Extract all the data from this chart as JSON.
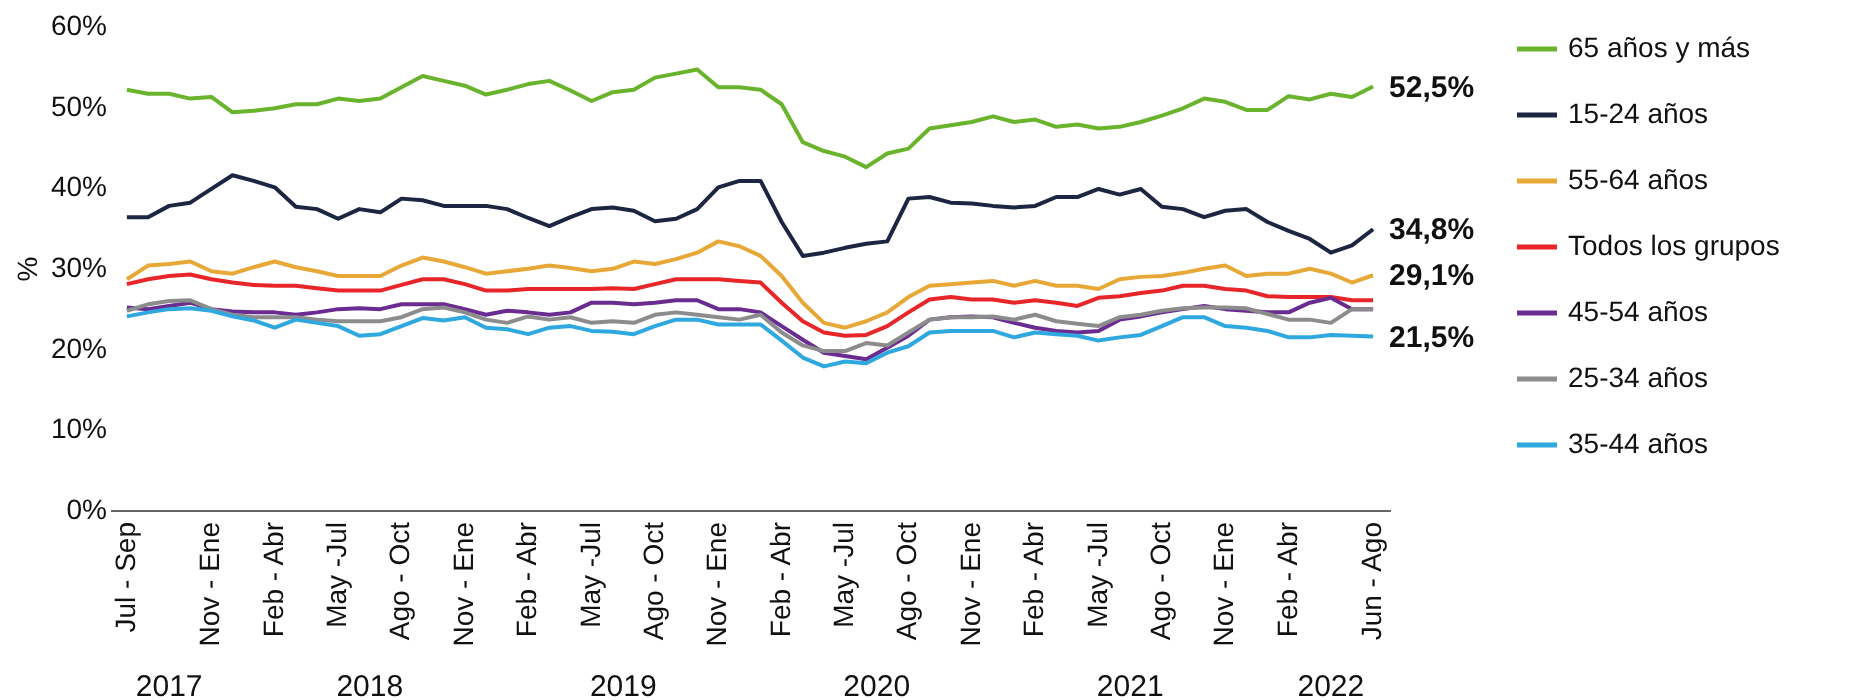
{
  "chart_data": {
    "type": "line",
    "ylabel": "%",
    "legend": "right",
    "categories": [
      "Jul - Sep",
      null,
      null,
      null,
      "Nov - Ene",
      null,
      null,
      "Feb - Abr",
      null,
      null,
      "May -Jul",
      null,
      null,
      "Ago - Oct",
      null,
      null,
      "Nov - Ene",
      null,
      null,
      "Feb - Abr",
      null,
      null,
      "May -Jul",
      null,
      null,
      "Ago - Oct",
      null,
      null,
      "Nov - Ene",
      null,
      null,
      "Feb - Abr",
      null,
      null,
      "May -Jul",
      null,
      null,
      "Ago - Oct",
      null,
      null,
      "Nov - Ene",
      null,
      null,
      "Feb - Abr",
      null,
      null,
      "May -Jul",
      null,
      null,
      "Ago - Oct",
      null,
      null,
      "Nov - Ene",
      null,
      null,
      "Feb - Abr",
      null,
      null,
      null,
      "Jun - Ago"
    ],
    "annotations": [
      "2017",
      "2018",
      "2019",
      "2020",
      "2021",
      "2022"
    ],
    "ylim": [
      0,
      60
    ],
    "yticks": [
      {
        "value": 0,
        "label": "0%"
      },
      {
        "value": 10,
        "label": "10%"
      },
      {
        "value": 20,
        "label": "20%"
      },
      {
        "value": 30,
        "label": "30%"
      },
      {
        "value": 40,
        "label": "40%"
      },
      {
        "value": 50,
        "label": "50%"
      },
      {
        "value": 60,
        "label": "60%"
      }
    ],
    "series": [
      {
        "name": "65 años y más",
        "color": "#6ab42d",
        "values": [
          52.1,
          51.6,
          51.6,
          51.0,
          51.2,
          49.3,
          49.5,
          49.8,
          50.3,
          50.3,
          51.0,
          50.7,
          51.0,
          52.4,
          53.8,
          53.2,
          52.6,
          51.5,
          52.1,
          52.8,
          53.2,
          52.0,
          50.7,
          51.8,
          52.1,
          53.6,
          54.1,
          54.6,
          52.4,
          52.4,
          52.1,
          50.3,
          45.6,
          44.5,
          43.8,
          42.5,
          44.2,
          44.8,
          47.3,
          47.7,
          48.1,
          48.8,
          48.1,
          48.4,
          47.5,
          47.8,
          47.3,
          47.5,
          48.1,
          48.9,
          49.8,
          51.0,
          50.6,
          49.6,
          49.6,
          51.3,
          50.9,
          51.6,
          51.2,
          52.5
        ],
        "value_labels": [
          null,
          null,
          null,
          null,
          null,
          null,
          null,
          null,
          null,
          null,
          null,
          null,
          null,
          null,
          null,
          null,
          null,
          null,
          null,
          null,
          null,
          null,
          null,
          null,
          null,
          null,
          null,
          null,
          null,
          null,
          null,
          null,
          null,
          null,
          null,
          null,
          null,
          null,
          null,
          null,
          null,
          null,
          null,
          null,
          null,
          null,
          null,
          null,
          null,
          null,
          null,
          null,
          null,
          null,
          null,
          null,
          null,
          null,
          null,
          "52,5%"
        ]
      },
      {
        "name": "15-24 años",
        "color": "#1c2541",
        "values": [
          36.3,
          36.3,
          37.7,
          38.1,
          39.8,
          41.5,
          40.8,
          40.0,
          37.6,
          37.3,
          36.1,
          37.3,
          36.9,
          38.6,
          38.4,
          37.7,
          37.7,
          37.7,
          37.3,
          36.2,
          35.2,
          36.3,
          37.3,
          37.5,
          37.1,
          35.8,
          36.1,
          37.3,
          40.0,
          40.8,
          40.8,
          35.7,
          31.5,
          31.9,
          32.5,
          33.0,
          33.3,
          38.6,
          38.8,
          38.1,
          38.0,
          37.7,
          37.5,
          37.7,
          38.8,
          38.8,
          39.8,
          39.1,
          39.8,
          37.6,
          37.3,
          36.3,
          37.1,
          37.3,
          35.7,
          34.6,
          33.6,
          31.9,
          32.8,
          34.8
        ],
        "value_labels": [
          null,
          null,
          null,
          null,
          null,
          null,
          null,
          null,
          null,
          null,
          null,
          null,
          null,
          null,
          null,
          null,
          null,
          null,
          null,
          null,
          null,
          null,
          null,
          null,
          null,
          null,
          null,
          null,
          null,
          null,
          null,
          null,
          null,
          null,
          null,
          null,
          null,
          null,
          null,
          null,
          null,
          null,
          null,
          null,
          null,
          null,
          null,
          null,
          null,
          null,
          null,
          null,
          null,
          null,
          null,
          null,
          null,
          null,
          null,
          "34,8%"
        ]
      },
      {
        "name": "55-64 años",
        "color": "#e8a838",
        "values": [
          28.6,
          30.3,
          30.5,
          30.8,
          29.6,
          29.3,
          30.1,
          30.8,
          30.1,
          29.6,
          29.0,
          29.0,
          29.0,
          30.3,
          31.3,
          30.8,
          30.1,
          29.3,
          29.6,
          29.9,
          30.3,
          30.0,
          29.6,
          29.9,
          30.8,
          30.5,
          31.1,
          31.9,
          33.3,
          32.7,
          31.5,
          29.0,
          25.7,
          23.2,
          22.6,
          23.4,
          24.5,
          26.4,
          27.8,
          28.0,
          28.2,
          28.4,
          27.8,
          28.4,
          27.8,
          27.8,
          27.4,
          28.6,
          28.9,
          29.0,
          29.4,
          29.9,
          30.3,
          29.0,
          29.3,
          29.3,
          29.9,
          29.3,
          28.2,
          29.1
        ],
        "value_labels": [
          null,
          null,
          null,
          null,
          null,
          null,
          null,
          null,
          null,
          null,
          null,
          null,
          null,
          null,
          null,
          null,
          null,
          null,
          null,
          null,
          null,
          null,
          null,
          null,
          null,
          null,
          null,
          null,
          null,
          null,
          null,
          null,
          null,
          null,
          null,
          null,
          null,
          null,
          null,
          null,
          null,
          null,
          null,
          null,
          null,
          null,
          null,
          null,
          null,
          null,
          null,
          null,
          null,
          null,
          null,
          null,
          null,
          null,
          null,
          "29,1%"
        ]
      },
      {
        "name": "Todos los grupos",
        "color": "#e8262a",
        "values": [
          28.0,
          28.6,
          29.0,
          29.2,
          28.6,
          28.2,
          27.9,
          27.8,
          27.8,
          27.5,
          27.2,
          27.2,
          27.2,
          27.9,
          28.6,
          28.6,
          28.0,
          27.2,
          27.2,
          27.4,
          27.4,
          27.4,
          27.4,
          27.5,
          27.4,
          28.0,
          28.6,
          28.6,
          28.6,
          28.4,
          28.2,
          25.7,
          23.4,
          22.0,
          21.6,
          21.7,
          22.8,
          24.5,
          26.1,
          26.4,
          26.1,
          26.1,
          25.7,
          26.0,
          25.7,
          25.3,
          26.3,
          26.5,
          26.9,
          27.2,
          27.8,
          27.8,
          27.4,
          27.2,
          26.5,
          26.4,
          26.4,
          26.4,
          26.0,
          26.0
        ]
      },
      {
        "name": "45-54 años",
        "color": "#6a2c91",
        "values": [
          25.1,
          24.9,
          25.3,
          25.7,
          24.9,
          24.6,
          24.5,
          24.5,
          24.2,
          24.5,
          24.9,
          25.0,
          24.9,
          25.5,
          25.5,
          25.5,
          24.9,
          24.2,
          24.7,
          24.5,
          24.2,
          24.5,
          25.7,
          25.7,
          25.5,
          25.7,
          26.0,
          26.0,
          24.9,
          24.9,
          24.5,
          22.8,
          21.1,
          19.5,
          19.1,
          18.7,
          20.1,
          21.6,
          23.6,
          23.9,
          24.0,
          23.9,
          23.2,
          22.6,
          22.2,
          22.0,
          22.2,
          23.6,
          24.0,
          24.5,
          24.9,
          25.3,
          24.9,
          24.7,
          24.5,
          24.5,
          25.7,
          26.3,
          24.9,
          24.9
        ]
      },
      {
        "name": "25-34 años",
        "color": "#8c8c8c",
        "values": [
          24.7,
          25.5,
          25.9,
          26.0,
          24.9,
          24.2,
          23.9,
          23.9,
          23.9,
          23.6,
          23.4,
          23.4,
          23.4,
          23.9,
          24.9,
          25.1,
          24.5,
          23.6,
          23.2,
          24.0,
          23.6,
          23.9,
          23.2,
          23.4,
          23.2,
          24.2,
          24.5,
          24.2,
          23.9,
          23.6,
          24.2,
          22.0,
          20.4,
          19.7,
          19.7,
          20.7,
          20.4,
          22.0,
          23.6,
          23.9,
          23.9,
          24.0,
          23.6,
          24.2,
          23.4,
          23.1,
          22.8,
          23.9,
          24.2,
          24.7,
          25.0,
          25.1,
          25.1,
          25.0,
          24.3,
          23.6,
          23.6,
          23.2,
          24.9,
          24.9
        ]
      },
      {
        "name": "35-44 años",
        "color": "#2fa8e0",
        "values": [
          24.0,
          24.5,
          24.9,
          25.0,
          24.7,
          24.0,
          23.5,
          22.6,
          23.6,
          23.2,
          22.8,
          21.6,
          21.8,
          22.8,
          23.8,
          23.5,
          23.9,
          22.6,
          22.4,
          21.8,
          22.6,
          22.8,
          22.2,
          22.1,
          21.8,
          22.8,
          23.6,
          23.6,
          23.0,
          23.0,
          23.0,
          21.0,
          18.9,
          17.8,
          18.4,
          18.2,
          19.5,
          20.3,
          22.0,
          22.2,
          22.2,
          22.2,
          21.4,
          22.0,
          21.8,
          21.6,
          21.0,
          21.4,
          21.7,
          22.8,
          23.9,
          23.9,
          22.8,
          22.6,
          22.2,
          21.4,
          21.4,
          21.7,
          21.6,
          21.5
        ],
        "value_labels": [
          null,
          null,
          null,
          null,
          null,
          null,
          null,
          null,
          null,
          null,
          null,
          null,
          null,
          null,
          null,
          null,
          null,
          null,
          null,
          null,
          null,
          null,
          null,
          null,
          null,
          null,
          null,
          null,
          null,
          null,
          null,
          null,
          null,
          null,
          null,
          null,
          null,
          null,
          null,
          null,
          null,
          null,
          null,
          null,
          null,
          null,
          null,
          null,
          null,
          null,
          null,
          null,
          null,
          null,
          null,
          null,
          null,
          null,
          null,
          "21,5%"
        ]
      }
    ]
  }
}
